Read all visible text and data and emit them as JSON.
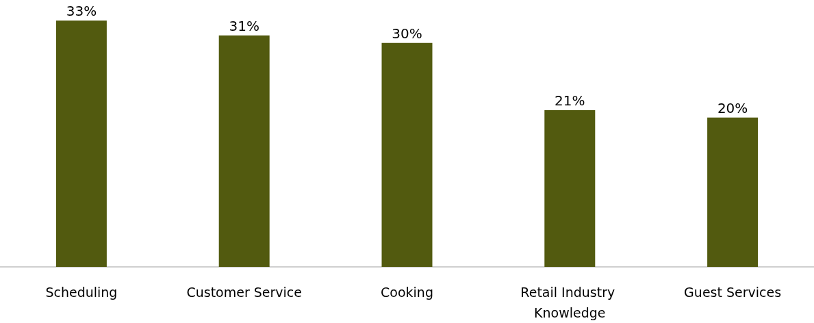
{
  "chart_data": {
    "type": "bar",
    "categories": [
      "Scheduling",
      "Customer Service",
      "Cooking",
      "Retail Industry Knowledge",
      "Guest Services"
    ],
    "values": [
      33,
      31,
      30,
      21,
      20
    ],
    "value_labels": [
      "33%",
      "31%",
      "30%",
      "21%",
      "20%"
    ],
    "color": "#525a0f"
  }
}
